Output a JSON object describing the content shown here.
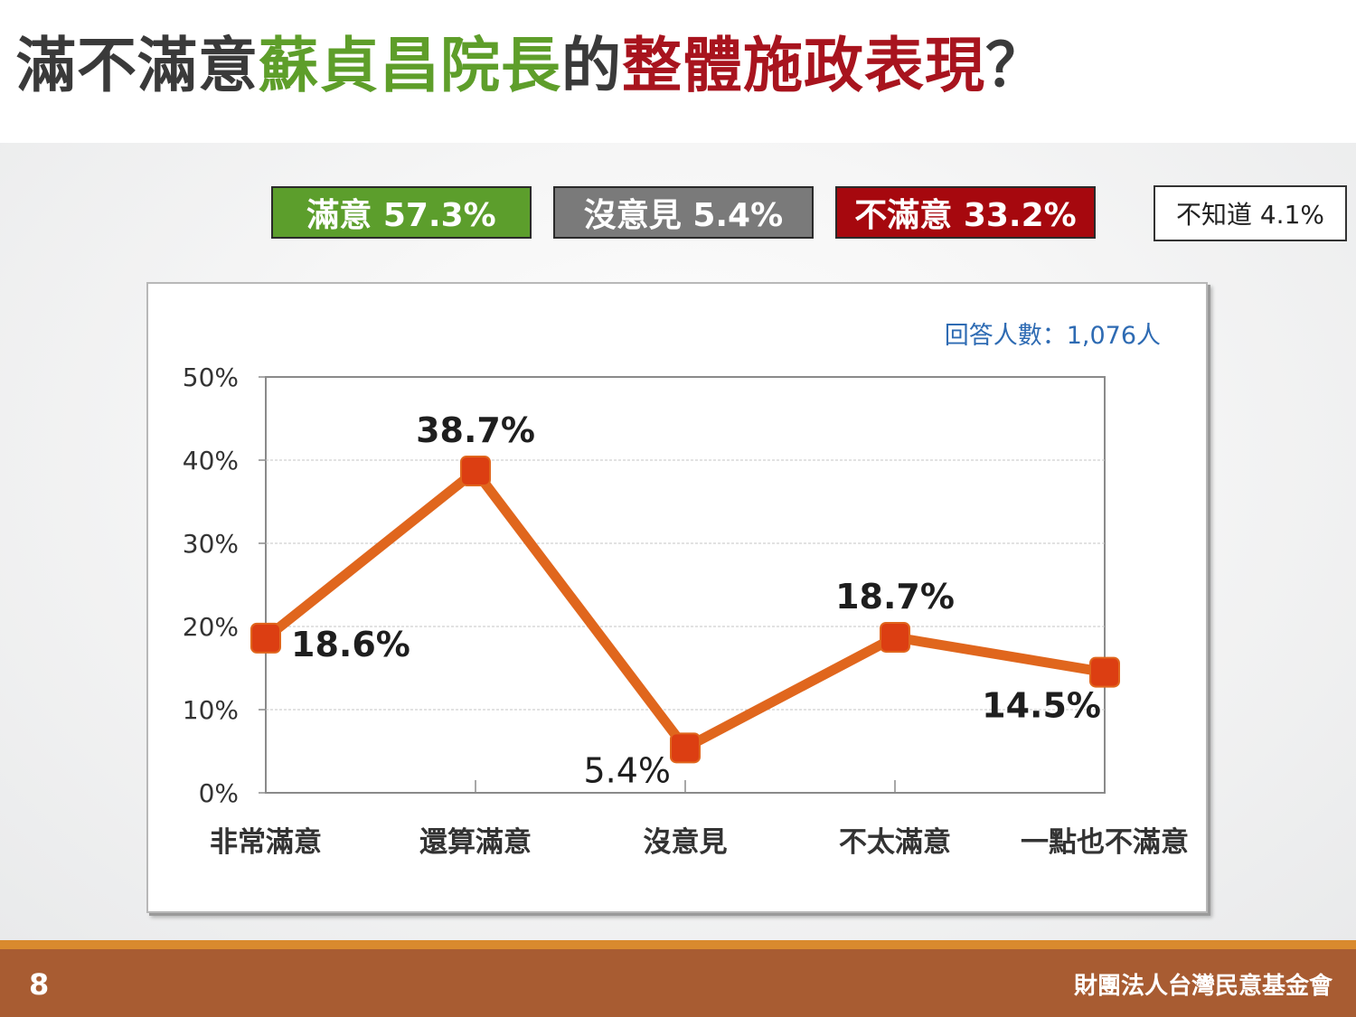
{
  "title": {
    "part1": "滿不滿意",
    "part2": "蘇貞昌院長",
    "part3": "的",
    "part4": "整體施政表現",
    "part5": "？"
  },
  "summary": {
    "satisfied": "滿意 57.3%",
    "no_opinion": "沒意見 5.4%",
    "dissatisfied": "不滿意 33.2%",
    "unknown": "不知道 4.1%"
  },
  "colors": {
    "satisfied": "#5c9e2c",
    "no_opinion": "#7a7a7a",
    "dissatisfied": "#a6080e",
    "line": "#e0661d",
    "marker": "#dc3e12"
  },
  "chart_data": {
    "type": "line",
    "annotation": "回答人數：1,076人",
    "categories": [
      "非常滿意",
      "還算滿意",
      "沒意見",
      "不太滿意",
      "一點也不滿意"
    ],
    "values": [
      18.6,
      38.7,
      5.4,
      18.7,
      14.5
    ],
    "data_labels": [
      "18.6%",
      "38.7%",
      "5.4%",
      "18.7%",
      "14.5%"
    ],
    "yticks": [
      "0%",
      "10%",
      "20%",
      "30%",
      "40%",
      "50%"
    ],
    "ylim": [
      0,
      50
    ],
    "grid": true
  },
  "footer": {
    "page_number": "8",
    "organization": "財團法人台灣民意基金會"
  }
}
